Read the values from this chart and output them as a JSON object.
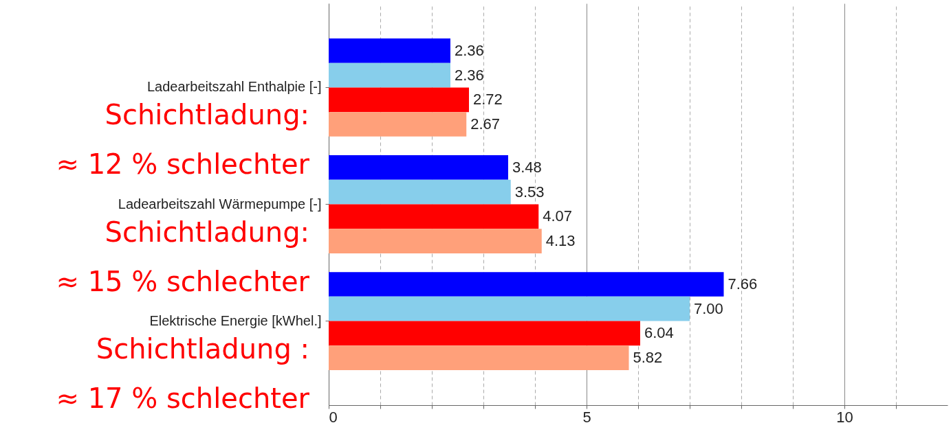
{
  "chart_data": {
    "type": "bar",
    "orientation": "horizontal",
    "categories": [
      "Ladearbeitszahl Enthalpie [-]",
      "Ladearbeitszahl Wärmepumpe [-]",
      "Elektrische Energie [kWhel.]"
    ],
    "series": [
      {
        "color": "#0000ff",
        "values": [
          2.36,
          3.48,
          7.66
        ]
      },
      {
        "color": "#87ceeb",
        "values": [
          2.36,
          3.53,
          7.0
        ],
        "value_labels": [
          "2.36",
          "3.53",
          "7.00"
        ]
      },
      {
        "color": "#ff0000",
        "values": [
          2.72,
          4.07,
          6.04
        ]
      },
      {
        "color": "#ffa07a",
        "values": [
          2.67,
          4.13,
          5.82
        ]
      }
    ],
    "xlim": [
      0,
      12
    ],
    "xticks": [
      0,
      {
        "value": 1,
        "label": null
      },
      {
        "value": 2,
        "label": null
      },
      {
        "value": 3,
        "label": null
      },
      {
        "value": 4,
        "label": null
      },
      5,
      {
        "value": 6,
        "label": null
      },
      {
        "value": 7,
        "label": null
      },
      {
        "value": 8,
        "label": null
      },
      {
        "value": 9,
        "label": null
      },
      10,
      {
        "value": 11,
        "label": null
      }
    ],
    "grid": "x",
    "data_labels": true,
    "annotations": [
      "Schichtladung:\n≈ 12 % schlechter",
      "Schichtladung:\n≈ 15 % schlechter",
      "Schichtladung :\n≈ 17 % schlechter"
    ]
  }
}
